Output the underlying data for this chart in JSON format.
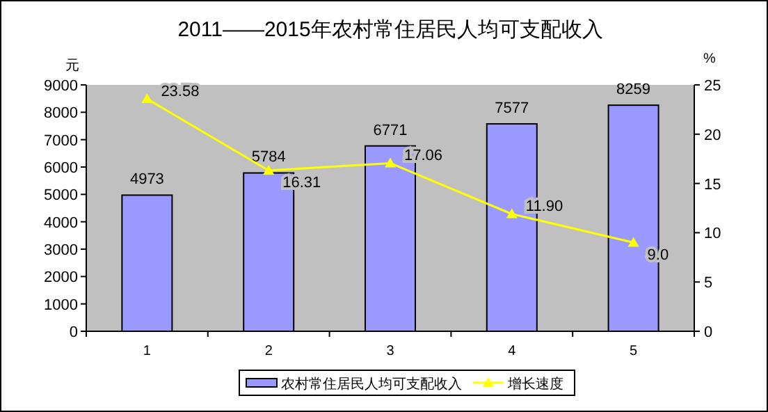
{
  "chart_data": {
    "type": "bar",
    "title": "2011——2015年农村常住居民人均可支配收入",
    "ylabel": "元",
    "y2label": "%",
    "categories": [
      "1",
      "2",
      "3",
      "4",
      "5"
    ],
    "series": [
      {
        "name": "农村常住居民人均可支配收入",
        "color": "#9999ff",
        "values": [
          4973,
          5784,
          6771,
          7577,
          8259
        ],
        "value_labels": [
          "4973",
          "5784",
          "6771",
          "7577",
          "8259"
        ]
      },
      {
        "name": "增长速度",
        "type": "line",
        "axis": "y2",
        "color": "#ffff00",
        "marker": "triangle",
        "values": [
          23.58,
          16.31,
          17.06,
          11.9,
          9.0
        ],
        "value_labels": [
          "23.58",
          "16.31",
          "17.06",
          "11.90",
          "9.0"
        ]
      }
    ],
    "ylim": [
      0,
      9000
    ],
    "yticks": [
      0,
      1000,
      2000,
      3000,
      4000,
      5000,
      6000,
      7000,
      8000,
      9000
    ],
    "y2lim": [
      0,
      25
    ],
    "y2ticks": [
      0,
      5,
      10,
      15,
      20,
      25
    ],
    "grid": false,
    "legend": "bottom"
  }
}
